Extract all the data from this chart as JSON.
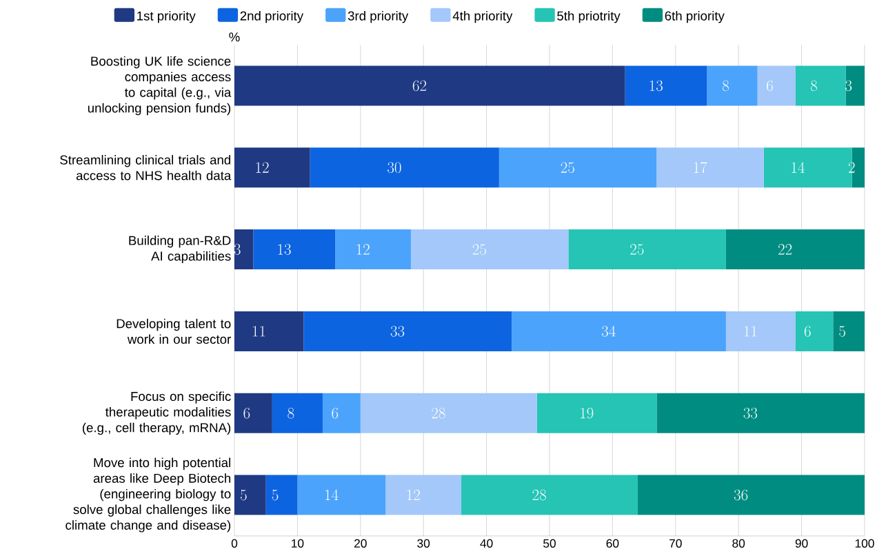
{
  "chart_data": {
    "type": "bar",
    "orientation": "horizontal",
    "stacked": true,
    "xlabel": "%",
    "categories": [
      "Boosting UK life science companies access to capital (e.g., via unlocking pension funds)",
      "Streamlining clinical trials and access to NHS health data",
      "Building pan-R&D AI capabilities",
      "Developing talent to work in our sector",
      "Focus on specific therapeutic modalities (e.g., cell therapy, mRNA)",
      "Move into high potential areas like Deep Biotech (engineering biology to solve global challenges like climate change and disease)"
    ],
    "series": [
      {
        "name": "1st priority",
        "color": "#1f3a83",
        "values": [
          62,
          12,
          3,
          11,
          6,
          5
        ]
      },
      {
        "name": "2nd priority",
        "color": "#0d64e0",
        "values": [
          13,
          30,
          13,
          33,
          8,
          5
        ]
      },
      {
        "name": "3rd priority",
        "color": "#4ba3fb",
        "values": [
          8,
          25,
          12,
          34,
          6,
          14
        ]
      },
      {
        "name": "4th priority",
        "color": "#a3c8f9",
        "values": [
          6,
          17,
          25,
          11,
          28,
          12
        ]
      },
      {
        "name": "5th priotrity",
        "color": "#25c4b5",
        "values": [
          8,
          14,
          25,
          6,
          19,
          28
        ]
      },
      {
        "name": "6th priority",
        "color": "#008c80",
        "values": [
          3,
          2,
          22,
          5,
          33,
          36
        ]
      }
    ],
    "xlim": [
      0,
      100
    ],
    "xticks": [
      0,
      10,
      20,
      30,
      40,
      50,
      60,
      70,
      80,
      90,
      100
    ],
    "grid": "x",
    "legend": "top",
    "data_labels": true
  }
}
